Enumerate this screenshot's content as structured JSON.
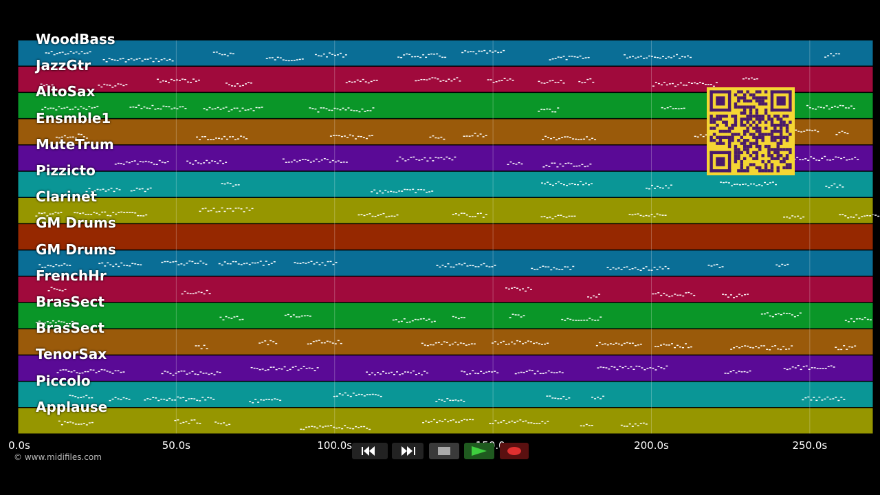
{
  "tracks": [
    {
      "name": "WoodBass",
      "color": "#0a6e96"
    },
    {
      "name": "JazzGtr",
      "color": "#a00a3c"
    },
    {
      "name": "AltoSax",
      "color": "#0a9628"
    },
    {
      "name": "Ensmble1",
      "color": "#9a5a0a"
    },
    {
      "name": "MuteTrum",
      "color": "#5a0a96"
    },
    {
      "name": "Pizzicto",
      "color": "#0a9696"
    },
    {
      "name": "Clarinet",
      "color": "#969600"
    },
    {
      "name": "GM Drums",
      "color": "#962800"
    },
    {
      "name": "GM Drums",
      "color": "#0a6e96"
    },
    {
      "name": "FrenchHr",
      "color": "#a00a3c"
    },
    {
      "name": "BrasSect",
      "color": "#0a9628"
    },
    {
      "name": "BrasSect",
      "color": "#9a5a0a"
    },
    {
      "name": "TenorSax",
      "color": "#5a0a96"
    },
    {
      "name": "Piccolo",
      "color": "#0a9696"
    },
    {
      "name": "Applause",
      "color": "#969600"
    }
  ],
  "timeline": {
    "ticks": [
      "0.0s",
      "50.0s",
      "100.0s",
      "150.0s",
      "200.0s",
      "250.0s"
    ],
    "tick_seconds": [
      0,
      50,
      100,
      150,
      200,
      250
    ],
    "max_seconds": 270
  },
  "copyright": "© www.midifiles.com",
  "transport": [
    {
      "icon": "rewind-icon"
    },
    {
      "icon": "fast-forward-icon"
    },
    {
      "icon": "stop-icon"
    },
    {
      "icon": "play-icon"
    },
    {
      "icon": "record-icon"
    }
  ]
}
